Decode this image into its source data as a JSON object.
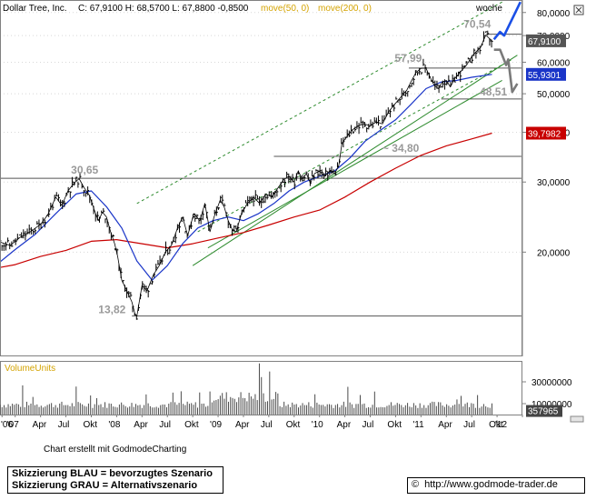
{
  "chart_data": {
    "type": "line",
    "header": {
      "ticker": "Dollar Tree, Inc.",
      "ohlc": "C: 67,9100 H: 68,5700 L: 67,8800 -0,8500",
      "ma50_label": "move(50, 0)",
      "ma200_label": "move(200, 0)"
    },
    "y_scale": "log",
    "ylim": [
      11,
      86
    ],
    "y_ticks": [
      {
        "value": 80,
        "label": "80,0000"
      },
      {
        "value": 70,
        "label": "70,0000"
      },
      {
        "value": 60,
        "label": "60,0000"
      },
      {
        "value": 50,
        "label": "50,0000"
      },
      {
        "value": 40,
        "label": "40,0000"
      },
      {
        "value": 30,
        "label": "30,0000"
      },
      {
        "value": 20,
        "label": "20,0000"
      }
    ],
    "price_badges": [
      {
        "value": 67.91,
        "label": "67,9100",
        "color": "#555555"
      },
      {
        "value": 55.93,
        "label": "55,9301",
        "color": "#1a35c8"
      },
      {
        "value": 39.8,
        "label": "39,7982",
        "color": "#c80000"
      }
    ],
    "x_ticks": [
      "'06",
      "'07",
      "Apr",
      "Jul",
      "Okt",
      "'08",
      "Apr",
      "Jul",
      "Okt",
      "'09",
      "Apr",
      "Jul",
      "Okt",
      "'10",
      "Apr",
      "Jul",
      "Okt",
      "'11",
      "Apr",
      "Jul",
      "Okt",
      "'12"
    ],
    "xlim": [
      2006.85,
      2012.0
    ],
    "levels": [
      {
        "value": 70.54,
        "label": "70,54"
      },
      {
        "value": 57.99,
        "label": "57,99"
      },
      {
        "value": 48.51,
        "label": "48,51"
      },
      {
        "value": 34.8,
        "label": "~ 34,80"
      },
      {
        "value": 30.65,
        "label": "30,65"
      },
      {
        "value": 13.82,
        "label": "13,82"
      }
    ],
    "price_series": {
      "name": "Kurs",
      "points": [
        [
          2006.85,
          21.2
        ],
        [
          2006.95,
          20.8
        ],
        [
          2007.05,
          21.8
        ],
        [
          2007.15,
          22.5
        ],
        [
          2007.25,
          23.5
        ],
        [
          2007.32,
          24.8
        ],
        [
          2007.4,
          27.5
        ],
        [
          2007.46,
          26.2
        ],
        [
          2007.52,
          28.5
        ],
        [
          2007.58,
          29.8
        ],
        [
          2007.63,
          30.6
        ],
        [
          2007.68,
          29.0
        ],
        [
          2007.73,
          27.8
        ],
        [
          2007.78,
          25.5
        ],
        [
          2007.82,
          24.0
        ],
        [
          2007.86,
          25.2
        ],
        [
          2007.9,
          24.5
        ],
        [
          2007.94,
          22.5
        ],
        [
          2007.98,
          21.0
        ],
        [
          2008.01,
          19.5
        ],
        [
          2008.05,
          17.0
        ],
        [
          2008.1,
          16.0
        ],
        [
          2008.15,
          15.0
        ],
        [
          2008.18,
          14.0
        ],
        [
          2008.2,
          13.82
        ],
        [
          2008.25,
          16.5
        ],
        [
          2008.3,
          16.0
        ],
        [
          2008.36,
          17.5
        ],
        [
          2008.42,
          18.5
        ],
        [
          2008.48,
          20.0
        ],
        [
          2008.54,
          20.8
        ],
        [
          2008.6,
          23.0
        ],
        [
          2008.65,
          24.5
        ],
        [
          2008.7,
          22.0
        ],
        [
          2008.76,
          25.0
        ],
        [
          2008.82,
          24.0
        ],
        [
          2008.87,
          26.5
        ],
        [
          2008.92,
          22.5
        ],
        [
          2008.96,
          24.5
        ],
        [
          2009.02,
          27.0
        ],
        [
          2009.06,
          26.0
        ],
        [
          2009.1,
          24.0
        ],
        [
          2009.14,
          22.8
        ],
        [
          2009.18,
          22.5
        ],
        [
          2009.23,
          25.0
        ],
        [
          2009.29,
          26.5
        ],
        [
          2009.35,
          27.5
        ],
        [
          2009.41,
          26.5
        ],
        [
          2009.47,
          28.0
        ],
        [
          2009.53,
          27.5
        ],
        [
          2009.59,
          29.0
        ],
        [
          2009.65,
          30.5
        ],
        [
          2009.7,
          31.0
        ],
        [
          2009.75,
          30.0
        ],
        [
          2009.79,
          32.0
        ],
        [
          2009.83,
          30.5
        ],
        [
          2009.87,
          31.5
        ],
        [
          2009.91,
          29.8
        ],
        [
          2009.95,
          31.5
        ],
        [
          2010.0,
          32.0
        ],
        [
          2010.05,
          31.0
        ],
        [
          2010.1,
          32.0
        ],
        [
          2010.15,
          31.5
        ],
        [
          2010.19,
          33.0
        ],
        [
          2010.22,
          37.5
        ],
        [
          2010.27,
          39.0
        ],
        [
          2010.32,
          40.5
        ],
        [
          2010.38,
          41.5
        ],
        [
          2010.44,
          42.0
        ],
        [
          2010.5,
          41.5
        ],
        [
          2010.56,
          42.5
        ],
        [
          2010.62,
          42.0
        ],
        [
          2010.68,
          45.0
        ],
        [
          2010.74,
          47.0
        ],
        [
          2010.8,
          49.0
        ],
        [
          2010.86,
          51.0
        ],
        [
          2010.9,
          53.5
        ],
        [
          2010.95,
          56.5
        ],
        [
          2011.0,
          57.9
        ],
        [
          2011.05,
          58.0
        ],
        [
          2011.09,
          55.0
        ],
        [
          2011.13,
          52.5
        ],
        [
          2011.17,
          51.5
        ],
        [
          2011.21,
          53.5
        ],
        [
          2011.25,
          54.0
        ],
        [
          2011.29,
          52.0
        ],
        [
          2011.33,
          54.5
        ],
        [
          2011.37,
          56.0
        ],
        [
          2011.41,
          57.5
        ],
        [
          2011.45,
          59.0
        ],
        [
          2011.5,
          62.0
        ],
        [
          2011.55,
          64.0
        ],
        [
          2011.59,
          65.5
        ],
        [
          2011.62,
          68.5
        ],
        [
          2011.64,
          70.2
        ],
        [
          2011.67,
          69.0
        ],
        [
          2011.7,
          67.91
        ]
      ]
    },
    "ma50": {
      "name": "move(50, 0)",
      "points": [
        [
          2006.85,
          18.9
        ],
        [
          2007.0,
          20.3
        ],
        [
          2007.2,
          22.2
        ],
        [
          2007.4,
          25.0
        ],
        [
          2007.6,
          28.0
        ],
        [
          2007.75,
          28.5
        ],
        [
          2007.9,
          26.0
        ],
        [
          2008.05,
          23.0
        ],
        [
          2008.2,
          19.0
        ],
        [
          2008.35,
          17.0
        ],
        [
          2008.5,
          18.5
        ],
        [
          2008.65,
          21.0
        ],
        [
          2008.8,
          23.0
        ],
        [
          2008.95,
          24.0
        ],
        [
          2009.1,
          24.5
        ],
        [
          2009.25,
          24.0
        ],
        [
          2009.4,
          25.0
        ],
        [
          2009.55,
          26.5
        ],
        [
          2009.7,
          28.5
        ],
        [
          2009.85,
          30.0
        ],
        [
          2010.0,
          31.0
        ],
        [
          2010.15,
          32.0
        ],
        [
          2010.3,
          34.5
        ],
        [
          2010.45,
          38.0
        ],
        [
          2010.6,
          40.5
        ],
        [
          2010.75,
          43.0
        ],
        [
          2010.9,
          47.0
        ],
        [
          2011.05,
          51.5
        ],
        [
          2011.2,
          53.5
        ],
        [
          2011.35,
          54.0
        ],
        [
          2011.5,
          55.0
        ],
        [
          2011.7,
          55.93
        ]
      ]
    },
    "ma200": {
      "name": "move(200, 0)",
      "points": [
        [
          2006.85,
          18.3
        ],
        [
          2007.0,
          18.6
        ],
        [
          2007.25,
          19.5
        ],
        [
          2007.5,
          20.2
        ],
        [
          2007.75,
          21.3
        ],
        [
          2008.0,
          21.5
        ],
        [
          2008.25,
          21.0
        ],
        [
          2008.5,
          20.5
        ],
        [
          2008.75,
          21.0
        ],
        [
          2009.0,
          21.7
        ],
        [
          2009.25,
          22.4
        ],
        [
          2009.5,
          23.4
        ],
        [
          2009.75,
          24.5
        ],
        [
          2010.0,
          25.5
        ],
        [
          2010.25,
          27.5
        ],
        [
          2010.5,
          30.0
        ],
        [
          2010.75,
          32.5
        ],
        [
          2011.0,
          35.0
        ],
        [
          2011.25,
          37.0
        ],
        [
          2011.5,
          38.5
        ],
        [
          2011.7,
          39.8
        ]
      ]
    },
    "trend_channel": {
      "upper_dotted": [
        [
          2008.2,
          26.5
        ],
        [
          2011.8,
          85.0
        ]
      ],
      "mid_dotted": [
        [
          2008.8,
          22.5
        ],
        [
          2011.9,
          61.0
        ]
      ],
      "lower_solid": [
        [
          2008.75,
          18.5
        ],
        [
          2011.95,
          62.5
        ]
      ],
      "support_solid": [
        [
          2008.9,
          20.5
        ],
        [
          2011.8,
          54.0
        ]
      ]
    },
    "scenarios": {
      "blue": {
        "label": "bevorzugtes Szenario",
        "color": "#1a4fe6",
        "points": [
          [
            2011.72,
            68.5
          ],
          [
            2011.78,
            71.5
          ],
          [
            2011.82,
            70.0
          ],
          [
            2011.98,
            85.0
          ]
        ]
      },
      "gray": {
        "label": "Alternativszenario",
        "color": "#7a7a7a",
        "points": [
          [
            2011.72,
            64.5
          ],
          [
            2011.78,
            64.5
          ],
          [
            2011.84,
            59.0
          ],
          [
            2011.86,
            61.0
          ],
          [
            2011.9,
            50.5
          ],
          [
            2011.95,
            53.0
          ]
        ]
      }
    },
    "volume": {
      "label": "VolumeUnits",
      "y_ticks": [
        {
          "value": 30000000,
          "label": "30000000"
        },
        {
          "value": 10000000,
          "label": "10000000"
        }
      ],
      "last_value": {
        "value": 357965,
        "label": "357965"
      },
      "ylim": [
        0,
        40000000
      ],
      "seed": 7,
      "count": 240
    }
  },
  "texts": {
    "weeks_label": "woche",
    "credit": "Chart erstellt mit GodmodeCharting",
    "legend_blue": "Skizzierung BLAU = bevorzugtes Szenario",
    "legend_gray": "Skizzierung GRAU = Alternativszenario",
    "url": "http://www.godmode-trader.de",
    "copyright": "©"
  },
  "colors": {
    "price": "#000000",
    "ma50": "#1a35c8",
    "ma200": "#c80000",
    "channel": "#2e8b2e",
    "levels": "#555555",
    "level_labels": "#9a9a9a",
    "volume": "#4a4a4a",
    "volume_label": "#d4a300",
    "header_ma_label": "#d4a300"
  }
}
